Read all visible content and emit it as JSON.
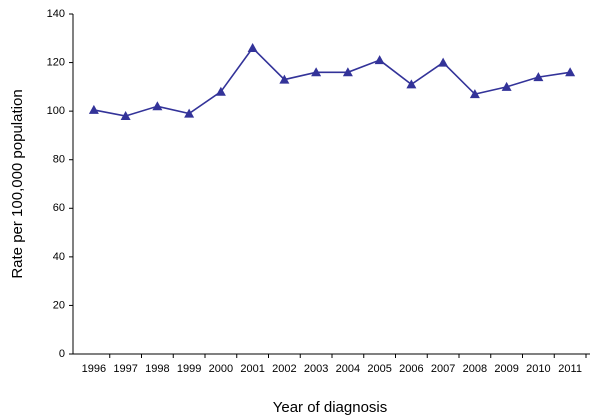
{
  "chart_data": {
    "type": "line",
    "x_label": "Year of diagnosis",
    "y_label": "Rate per 100,000 population",
    "categories": [
      "1996",
      "1997",
      "1998",
      "1999",
      "2000",
      "2001",
      "2002",
      "2003",
      "2004",
      "2005",
      "2006",
      "2007",
      "2008",
      "2009",
      "2010",
      "2011"
    ],
    "values": [
      100.5,
      98,
      102,
      99,
      108,
      126,
      113,
      116,
      116,
      121,
      111,
      120,
      107,
      110,
      114,
      116
    ],
    "color": "#333399",
    "ylim": [
      0,
      140
    ],
    "yticks": [
      0,
      20,
      40,
      60,
      80,
      100,
      120,
      140
    ],
    "grid": false
  }
}
